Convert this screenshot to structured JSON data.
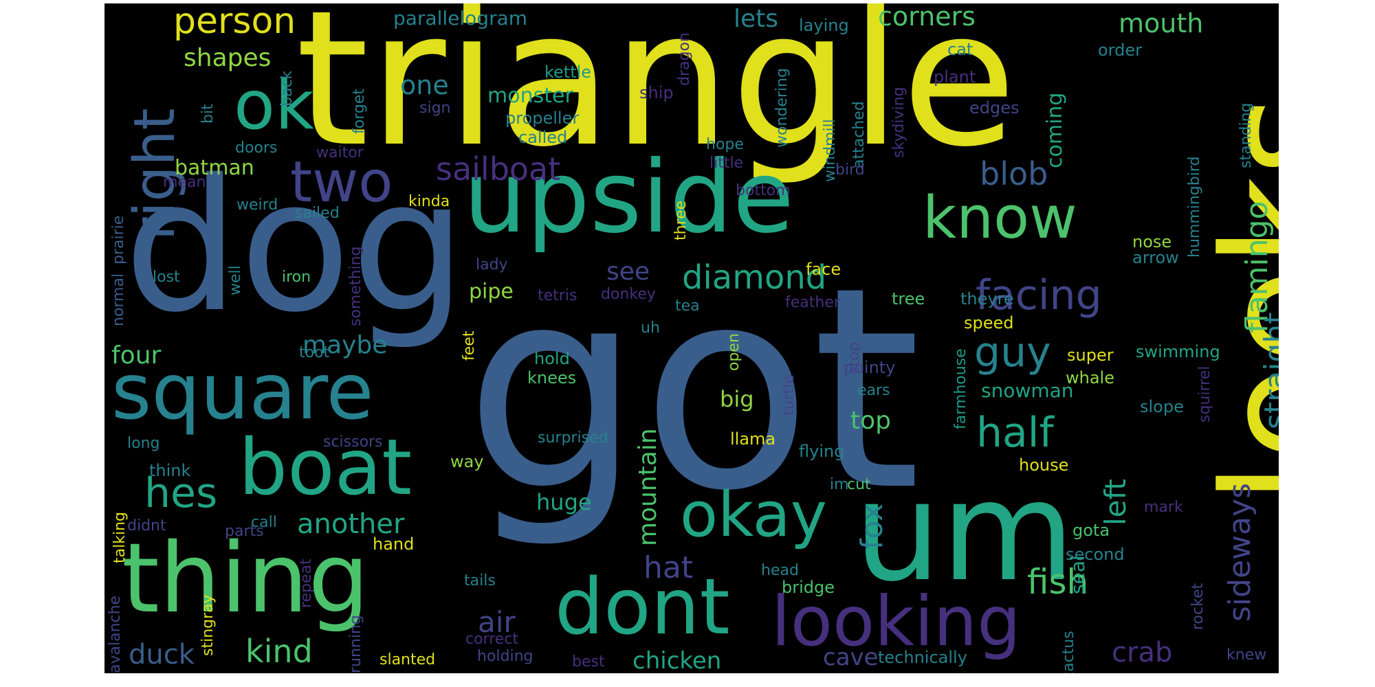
{
  "palette": {
    "yellow": "#e0e01c",
    "lime": "#8fd744",
    "green": "#4cc26c",
    "teal": "#21a585",
    "bluegreen": "#1f9a8a",
    "cyan": "#26828e",
    "blue": "#3a5e8c",
    "indigo": "#414487",
    "purple": "#46307e",
    "violet": "#440154"
  },
  "words": [
    {
      "text": "got",
      "color": "blue"
    },
    {
      "text": "triangle",
      "color": "yellow"
    },
    {
      "text": "dog",
      "color": "blue"
    },
    {
      "text": "looks",
      "color": "yellow"
    },
    {
      "text": "upside",
      "color": "teal"
    },
    {
      "text": "um",
      "color": "teal"
    },
    {
      "text": "square",
      "color": "cyan"
    },
    {
      "text": "thing",
      "color": "green"
    },
    {
      "text": "boat",
      "color": "teal"
    },
    {
      "text": "dont",
      "color": "teal"
    },
    {
      "text": "looking",
      "color": "purple"
    },
    {
      "text": "ok",
      "color": "teal"
    },
    {
      "text": "okay",
      "color": "teal"
    },
    {
      "text": "know",
      "color": "green"
    },
    {
      "text": "right",
      "color": "blue"
    },
    {
      "text": "two",
      "color": "indigo"
    },
    {
      "text": "half",
      "color": "teal"
    },
    {
      "text": "hes",
      "color": "teal"
    },
    {
      "text": "guy",
      "color": "cyan"
    },
    {
      "text": "facing",
      "color": "indigo"
    },
    {
      "text": "diamond",
      "color": "teal"
    },
    {
      "text": "flamingo",
      "color": "green"
    },
    {
      "text": "sideways",
      "color": "indigo"
    },
    {
      "text": "straight",
      "color": "cyan"
    },
    {
      "text": "person",
      "color": "yellow"
    },
    {
      "text": "sailboat",
      "color": "purple"
    },
    {
      "text": "fox",
      "color": "cyan"
    },
    {
      "text": "fish",
      "color": "green"
    },
    {
      "text": "left",
      "color": "teal"
    },
    {
      "text": "blob",
      "color": "blue"
    },
    {
      "text": "another",
      "color": "teal"
    },
    {
      "text": "kind",
      "color": "green"
    },
    {
      "text": "hat",
      "color": "indigo"
    },
    {
      "text": "air",
      "color": "indigo"
    },
    {
      "text": "duck",
      "color": "blue"
    },
    {
      "text": "mountain",
      "color": "green"
    },
    {
      "text": "chicken",
      "color": "teal"
    },
    {
      "text": "crab",
      "color": "purple"
    },
    {
      "text": "cave",
      "color": "indigo"
    },
    {
      "text": "corners",
      "color": "green"
    },
    {
      "text": "mouth",
      "color": "green"
    },
    {
      "text": "lets",
      "color": "cyan"
    },
    {
      "text": "one",
      "color": "cyan"
    },
    {
      "text": "shapes",
      "color": "lime"
    },
    {
      "text": "parallelogram",
      "color": "cyan"
    },
    {
      "text": "monster",
      "color": "teal"
    },
    {
      "text": "coming",
      "color": "teal"
    },
    {
      "text": "batman",
      "color": "lime"
    },
    {
      "text": "see",
      "color": "indigo"
    },
    {
      "text": "maybe",
      "color": "cyan"
    },
    {
      "text": "four",
      "color": "green"
    },
    {
      "text": "pipe",
      "color": "lime"
    },
    {
      "text": "top",
      "color": "green"
    },
    {
      "text": "snowman",
      "color": "teal"
    },
    {
      "text": "big",
      "color": "lime"
    },
    {
      "text": "huge",
      "color": "teal"
    },
    {
      "text": "seal",
      "color": "teal"
    },
    {
      "text": "kettle",
      "color": "bluegreen"
    },
    {
      "text": "propeller",
      "color": "cyan"
    },
    {
      "text": "called",
      "color": "cyan"
    },
    {
      "text": "ship",
      "color": "purple"
    },
    {
      "text": "dragon",
      "color": "purple"
    },
    {
      "text": "laying",
      "color": "cyan"
    },
    {
      "text": "cat",
      "color": "cyan"
    },
    {
      "text": "order",
      "color": "cyan"
    },
    {
      "text": "plant",
      "color": "purple"
    },
    {
      "text": "edges",
      "color": "indigo"
    },
    {
      "text": "skydiving",
      "color": "purple"
    },
    {
      "text": "attached",
      "color": "cyan"
    },
    {
      "text": "windmill",
      "color": "cyan"
    },
    {
      "text": "wondering",
      "color": "cyan"
    },
    {
      "text": "hope",
      "color": "cyan"
    },
    {
      "text": "little",
      "color": "purple"
    },
    {
      "text": "bottom",
      "color": "purple"
    },
    {
      "text": "bird",
      "color": "indigo"
    },
    {
      "text": "standing",
      "color": "cyan"
    },
    {
      "text": "hummingbird",
      "color": "cyan"
    },
    {
      "text": "nose",
      "color": "lime"
    },
    {
      "text": "arrow",
      "color": "cyan"
    },
    {
      "text": "back",
      "color": "cyan"
    },
    {
      "text": "bit",
      "color": "cyan"
    },
    {
      "text": "forget",
      "color": "cyan"
    },
    {
      "text": "sign",
      "color": "indigo"
    },
    {
      "text": "doors",
      "color": "cyan"
    },
    {
      "text": "waitor",
      "color": "purple"
    },
    {
      "text": "mean",
      "color": "purple"
    },
    {
      "text": "weird",
      "color": "cyan"
    },
    {
      "text": "sailed",
      "color": "cyan"
    },
    {
      "text": "kinda",
      "color": "yellow"
    },
    {
      "text": "three",
      "color": "yellow"
    },
    {
      "text": "normal",
      "color": "blue"
    },
    {
      "text": "prairie",
      "color": "blue"
    },
    {
      "text": "lost",
      "color": "cyan"
    },
    {
      "text": "well",
      "color": "cyan"
    },
    {
      "text": "iron",
      "color": "green"
    },
    {
      "text": "lady",
      "color": "indigo"
    },
    {
      "text": "something",
      "color": "purple"
    },
    {
      "text": "tetris",
      "color": "purple"
    },
    {
      "text": "donkey",
      "color": "purple"
    },
    {
      "text": "tea",
      "color": "cyan"
    },
    {
      "text": "face",
      "color": "yellow"
    },
    {
      "text": "feather",
      "color": "purple"
    },
    {
      "text": "tree",
      "color": "green"
    },
    {
      "text": "theyre",
      "color": "cyan"
    },
    {
      "text": "speed",
      "color": "yellow"
    },
    {
      "text": "uh",
      "color": "cyan"
    },
    {
      "text": "hold",
      "color": "teal"
    },
    {
      "text": "feet",
      "color": "yellow"
    },
    {
      "text": "toot",
      "color": "cyan"
    },
    {
      "text": "knees",
      "color": "green"
    },
    {
      "text": "stop",
      "color": "indigo"
    },
    {
      "text": "farmhouse",
      "color": "bluegreen"
    },
    {
      "text": "super",
      "color": "yellow"
    },
    {
      "text": "whale",
      "color": "lime"
    },
    {
      "text": "swimming",
      "color": "teal"
    },
    {
      "text": "squirrel",
      "color": "purple"
    },
    {
      "text": "pointy",
      "color": "indigo"
    },
    {
      "text": "ears",
      "color": "cyan"
    },
    {
      "text": "open",
      "color": "lime"
    },
    {
      "text": "turtle",
      "color": "indigo"
    },
    {
      "text": "slope",
      "color": "cyan"
    },
    {
      "text": "long",
      "color": "cyan"
    },
    {
      "text": "scissors",
      "color": "indigo"
    },
    {
      "text": "surprised",
      "color": "cyan"
    },
    {
      "text": "llama",
      "color": "yellow"
    },
    {
      "text": "flying",
      "color": "cyan"
    },
    {
      "text": "think",
      "color": "cyan"
    },
    {
      "text": "way",
      "color": "lime"
    },
    {
      "text": "house",
      "color": "yellow"
    },
    {
      "text": "im",
      "color": "cyan"
    },
    {
      "text": "cut",
      "color": "green"
    },
    {
      "text": "talking",
      "color": "yellow"
    },
    {
      "text": "call",
      "color": "cyan"
    },
    {
      "text": "didnt",
      "color": "indigo"
    },
    {
      "text": "parts",
      "color": "indigo"
    },
    {
      "text": "hand",
      "color": "yellow"
    },
    {
      "text": "gota",
      "color": "green"
    },
    {
      "text": "second",
      "color": "cyan"
    },
    {
      "text": "mark",
      "color": "purple"
    },
    {
      "text": "avalanche",
      "color": "indigo"
    },
    {
      "text": "stingray",
      "color": "yellow"
    },
    {
      "text": "repeat",
      "color": "purple"
    },
    {
      "text": "tails",
      "color": "cyan"
    },
    {
      "text": "head",
      "color": "cyan"
    },
    {
      "text": "bridge",
      "color": "green"
    },
    {
      "text": "rocket",
      "color": "indigo"
    },
    {
      "text": "running",
      "color": "indigo"
    },
    {
      "text": "correct",
      "color": "purple"
    },
    {
      "text": "cactus",
      "color": "cyan"
    },
    {
      "text": "slanted",
      "color": "yellow"
    },
    {
      "text": "holding",
      "color": "indigo"
    },
    {
      "text": "best",
      "color": "purple"
    },
    {
      "text": "technically",
      "color": "cyan"
    },
    {
      "text": "knew",
      "color": "indigo"
    }
  ]
}
